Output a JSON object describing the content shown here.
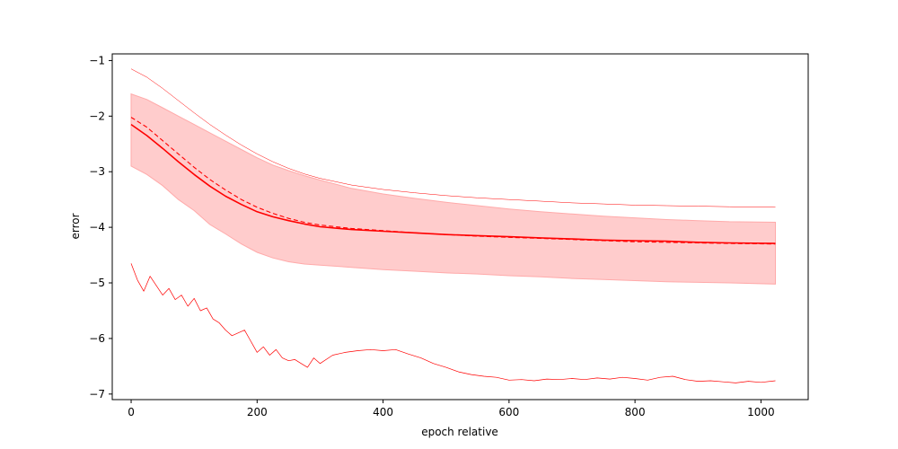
{
  "chart_data": {
    "type": "line",
    "title": "",
    "xlabel": "epoch relative",
    "ylabel": "error",
    "xlim": [
      -30,
      1075
    ],
    "ylim": [
      -7.1,
      -0.88
    ],
    "xticks": [
      0,
      200,
      400,
      600,
      800,
      1000
    ],
    "yticks": [
      -7,
      -6,
      -5,
      -4,
      -3,
      -2,
      -1
    ],
    "xtick_labels": [
      "0",
      "200",
      "400",
      "600",
      "800",
      "1000"
    ],
    "ytick_labels": [
      "−7",
      "−6",
      "−5",
      "−4",
      "−3",
      "−2",
      "−1"
    ],
    "grid": false,
    "legend": "none",
    "color": "#ff0000",
    "band_color": "#ffcccc",
    "band": {
      "x": [
        0,
        25,
        50,
        75,
        100,
        125,
        150,
        175,
        200,
        225,
        250,
        275,
        300,
        350,
        400,
        450,
        500,
        550,
        600,
        650,
        700,
        750,
        800,
        850,
        900,
        950,
        1023
      ],
      "upper": [
        -1.6,
        -1.7,
        -1.85,
        -2.0,
        -2.15,
        -2.3,
        -2.45,
        -2.6,
        -2.75,
        -2.88,
        -2.98,
        -3.07,
        -3.15,
        -3.3,
        -3.4,
        -3.48,
        -3.55,
        -3.61,
        -3.67,
        -3.72,
        -3.76,
        -3.8,
        -3.83,
        -3.86,
        -3.88,
        -3.9,
        -3.91
      ],
      "lower": [
        -2.9,
        -3.05,
        -3.25,
        -3.5,
        -3.7,
        -3.95,
        -4.12,
        -4.3,
        -4.45,
        -4.55,
        -4.62,
        -4.66,
        -4.68,
        -4.72,
        -4.76,
        -4.79,
        -4.82,
        -4.84,
        -4.87,
        -4.89,
        -4.92,
        -4.94,
        -4.96,
        -4.98,
        -4.99,
        -5.0,
        -5.02
      ]
    },
    "series": [
      {
        "style": "solid",
        "x": [
          0,
          25,
          50,
          75,
          100,
          125,
          150,
          175,
          200,
          225,
          250,
          275,
          300,
          350,
          400,
          450,
          500,
          550,
          600,
          650,
          700,
          750,
          800,
          850,
          900,
          950,
          1023
        ],
        "values": [
          -2.15,
          -2.35,
          -2.58,
          -2.82,
          -3.05,
          -3.26,
          -3.44,
          -3.59,
          -3.72,
          -3.81,
          -3.88,
          -3.94,
          -3.99,
          -4.04,
          -4.07,
          -4.1,
          -4.13,
          -4.15,
          -4.17,
          -4.19,
          -4.21,
          -4.23,
          -4.24,
          -4.25,
          -4.27,
          -4.28,
          -4.29
        ]
      },
      {
        "style": "dashed",
        "x": [
          0,
          25,
          50,
          75,
          100,
          125,
          150,
          175,
          200,
          225,
          250,
          275,
          300,
          350,
          400,
          450,
          500,
          550,
          600,
          650,
          700,
          750,
          800,
          850,
          900,
          950,
          1023
        ],
        "values": [
          -2.02,
          -2.2,
          -2.44,
          -2.68,
          -2.92,
          -3.14,
          -3.33,
          -3.5,
          -3.64,
          -3.75,
          -3.84,
          -3.91,
          -3.96,
          -4.02,
          -4.06,
          -4.1,
          -4.13,
          -4.16,
          -4.18,
          -4.2,
          -4.22,
          -4.24,
          -4.26,
          -4.27,
          -4.28,
          -4.29,
          -4.3
        ]
      },
      {
        "style": "thin",
        "x": [
          0,
          25,
          50,
          75,
          100,
          125,
          150,
          175,
          200,
          225,
          250,
          275,
          300,
          350,
          400,
          450,
          500,
          550,
          600,
          650,
          700,
          750,
          800,
          850,
          900,
          950,
          1023
        ],
        "values": [
          -1.15,
          -1.3,
          -1.5,
          -1.72,
          -1.94,
          -2.15,
          -2.34,
          -2.52,
          -2.68,
          -2.82,
          -2.94,
          -3.04,
          -3.12,
          -3.24,
          -3.32,
          -3.38,
          -3.43,
          -3.47,
          -3.5,
          -3.53,
          -3.56,
          -3.58,
          -3.6,
          -3.61,
          -3.62,
          -3.63,
          -3.64
        ]
      },
      {
        "style": "noisy",
        "x": [
          0,
          10,
          20,
          30,
          40,
          50,
          60,
          70,
          80,
          90,
          100,
          110,
          120,
          130,
          140,
          150,
          160,
          170,
          180,
          190,
          200,
          210,
          220,
          230,
          240,
          250,
          260,
          270,
          280,
          290,
          300,
          320,
          340,
          360,
          380,
          400,
          420,
          440,
          460,
          480,
          500,
          520,
          540,
          560,
          580,
          600,
          620,
          640,
          660,
          680,
          700,
          720,
          740,
          760,
          780,
          800,
          820,
          840,
          860,
          880,
          900,
          920,
          940,
          960,
          980,
          1000,
          1023
        ],
        "values": [
          -4.65,
          -4.95,
          -5.15,
          -4.88,
          -5.05,
          -5.22,
          -5.1,
          -5.3,
          -5.22,
          -5.42,
          -5.28,
          -5.5,
          -5.45,
          -5.65,
          -5.72,
          -5.85,
          -5.95,
          -5.9,
          -5.85,
          -6.05,
          -6.25,
          -6.15,
          -6.3,
          -6.2,
          -6.35,
          -6.4,
          -6.38,
          -6.45,
          -6.52,
          -6.35,
          -6.45,
          -6.3,
          -6.25,
          -6.22,
          -6.2,
          -6.22,
          -6.2,
          -6.28,
          -6.35,
          -6.45,
          -6.52,
          -6.6,
          -6.65,
          -6.68,
          -6.7,
          -6.75,
          -6.74,
          -6.76,
          -6.73,
          -6.74,
          -6.72,
          -6.74,
          -6.71,
          -6.73,
          -6.7,
          -6.72,
          -6.75,
          -6.7,
          -6.68,
          -6.74,
          -6.77,
          -6.76,
          -6.78,
          -6.8,
          -6.77,
          -6.79,
          -6.76
        ]
      }
    ]
  }
}
